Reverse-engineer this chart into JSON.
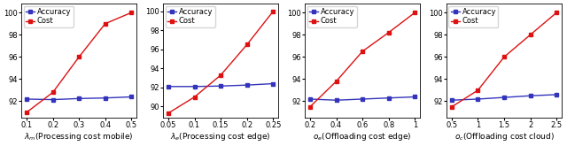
{
  "subplots": [
    {
      "xlabel": "$\\lambda_m$(Processing cost mobile)",
      "x": [
        0.1,
        0.2,
        0.3,
        0.4,
        0.5
      ],
      "accuracy": [
        92.2,
        92.15,
        92.25,
        92.3,
        92.4
      ],
      "cost": [
        91.0,
        92.8,
        96.0,
        99.0,
        100.0
      ],
      "xticks": [
        0.1,
        0.2,
        0.3,
        0.4,
        0.5
      ],
      "ylim": [
        90.5,
        100.8
      ],
      "yticks": [
        92,
        94,
        96,
        98,
        100
      ]
    },
    {
      "xlabel": "$\\lambda_e$(Processing cost edge)",
      "x": [
        0.05,
        0.1,
        0.15,
        0.2,
        0.25
      ],
      "accuracy": [
        92.1,
        92.1,
        92.15,
        92.25,
        92.4
      ],
      "cost": [
        89.3,
        91.0,
        93.3,
        96.5,
        100.0
      ],
      "xticks": [
        0.05,
        0.1,
        0.15,
        0.2,
        0.25
      ],
      "ylim": [
        88.8,
        100.8
      ],
      "yticks": [
        90,
        92,
        94,
        96,
        98,
        100
      ]
    },
    {
      "xlabel": "$o_e$(Offloading cost edge)",
      "x": [
        0.2,
        0.4,
        0.6,
        0.8,
        1.0
      ],
      "accuracy": [
        92.2,
        92.1,
        92.2,
        92.3,
        92.4
      ],
      "cost": [
        91.5,
        93.8,
        96.5,
        98.2,
        100.0
      ],
      "xticks": [
        0.2,
        0.4,
        0.6,
        0.8,
        1.0
      ],
      "ylim": [
        90.5,
        100.8
      ],
      "yticks": [
        92,
        94,
        96,
        98,
        100
      ]
    },
    {
      "xlabel": "$o_c$(Offloading cost cloud)",
      "x": [
        0.5,
        1.0,
        1.5,
        2.0,
        2.5
      ],
      "accuracy": [
        92.1,
        92.2,
        92.35,
        92.5,
        92.6
      ],
      "cost": [
        91.5,
        93.0,
        96.0,
        98.0,
        100.0
      ],
      "xticks": [
        0.5,
        1.0,
        1.5,
        2.0,
        2.5
      ],
      "ylim": [
        90.5,
        100.8
      ],
      "yticks": [
        92,
        94,
        96,
        98,
        100
      ]
    }
  ],
  "accuracy_color": "#3333bb",
  "cost_color": "#dd1111",
  "marker": "s",
  "markersize": 2.5,
  "linewidth": 1.0,
  "legend_labels": [
    "Accuracy",
    "Cost"
  ],
  "xlabel_fontsize": 6.5,
  "tick_fontsize": 6.0,
  "legend_fontsize": 6.0,
  "figsize": [
    6.4,
    1.65
  ],
  "dpi": 100
}
